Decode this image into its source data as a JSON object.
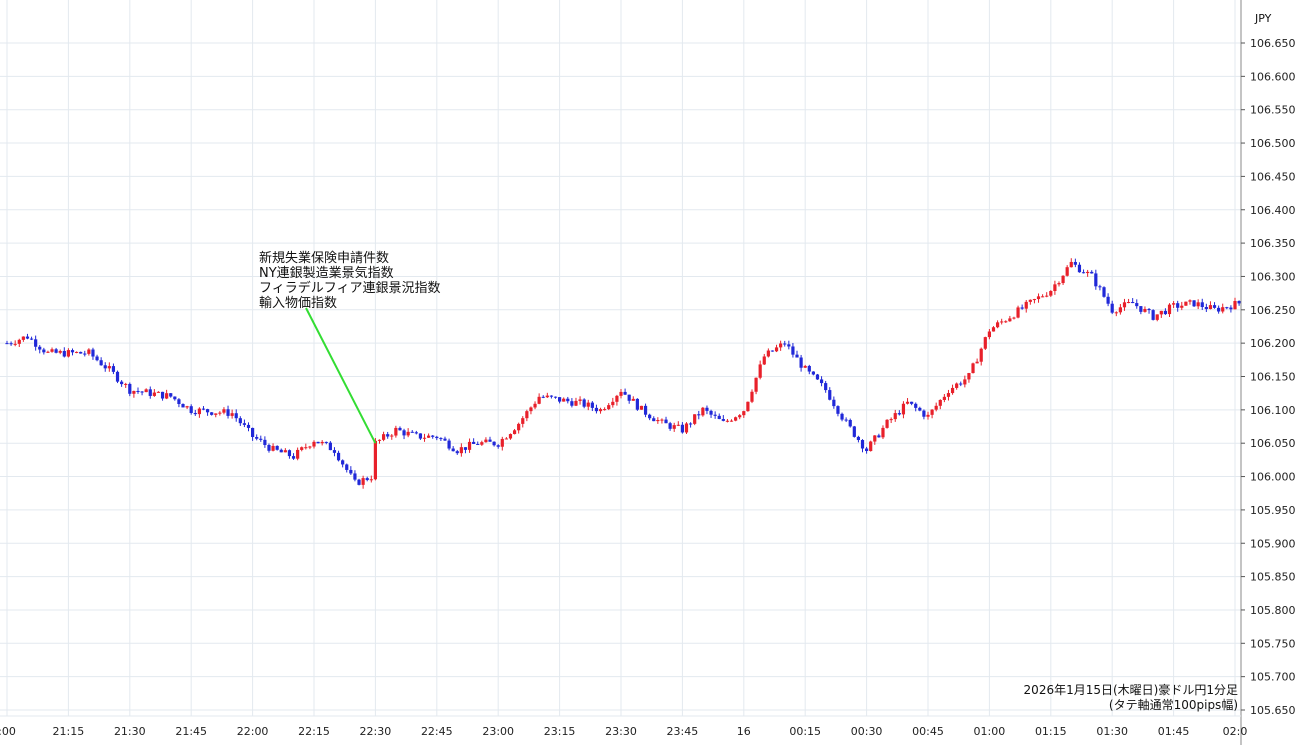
{
  "currency_label": "JPY",
  "caption": {
    "line1": "2026年1月15日(木曜日)豪ドル円1分足",
    "line2": "(タテ軸通常100pips幅)"
  },
  "annotation": {
    "lines": [
      "新規失業保険申請件数",
      "NY連銀製造業景気指数",
      "フィラデルフィア連銀景況指数",
      "輸入物価指数"
    ],
    "points_to_time": "22:30"
  },
  "colors": {
    "up": "#e8202a",
    "down": "#2028d8",
    "grid": "#e3e9ef",
    "annotation_line": "#33dd33",
    "axis": "#555555"
  },
  "chart_data": {
    "type": "candlestick",
    "interval": "1 minute",
    "x_ticks": [
      ":00",
      "21:15",
      "21:30",
      "21:45",
      "22:00",
      "22:15",
      "22:30",
      "22:45",
      "23:00",
      "23:15",
      "23:30",
      "23:45",
      "16",
      "00:15",
      "00:30",
      "00:45",
      "01:00",
      "01:15",
      "01:30",
      "01:45",
      "02:0"
    ],
    "y_ticks": [
      "106.650",
      "106.600",
      "106.550",
      "106.500",
      "106.450",
      "106.400",
      "106.350",
      "106.300",
      "106.250",
      "106.200",
      "106.150",
      "106.100",
      "106.050",
      "106.000",
      "105.950",
      "105.900",
      "105.850",
      "105.800",
      "105.750",
      "105.700",
      "105.650"
    ],
    "ylim": [
      105.65,
      106.65
    ],
    "grid": true,
    "close_path": [
      [
        "21:00",
        106.2
      ],
      [
        "21:05",
        106.21
      ],
      [
        "21:10",
        106.185
      ],
      [
        "21:20",
        106.185
      ],
      [
        "21:25",
        106.16
      ],
      [
        "21:30",
        106.13
      ],
      [
        "21:40",
        106.12
      ],
      [
        "21:45",
        106.1
      ],
      [
        "21:55",
        106.095
      ],
      [
        "22:00",
        106.06
      ],
      [
        "22:05",
        106.04
      ],
      [
        "22:10",
        106.03
      ],
      [
        "22:15",
        106.055
      ],
      [
        "22:20",
        106.04
      ],
      [
        "22:25",
        105.99
      ],
      [
        "22:29",
        106.0
      ],
      [
        "22:30",
        106.05
      ],
      [
        "22:35",
        106.07
      ],
      [
        "22:40",
        106.06
      ],
      [
        "22:45",
        106.06
      ],
      [
        "22:50",
        106.04
      ],
      [
        "22:55",
        106.05
      ],
      [
        "23:00",
        106.05
      ],
      [
        "23:05",
        106.08
      ],
      [
        "23:10",
        106.12
      ],
      [
        "23:15",
        106.115
      ],
      [
        "23:20",
        106.11
      ],
      [
        "23:25",
        106.1
      ],
      [
        "23:30",
        106.13
      ],
      [
        "23:35",
        106.1
      ],
      [
        "23:40",
        106.08
      ],
      [
        "23:45",
        106.07
      ],
      [
        "23:50",
        106.1
      ],
      [
        "23:55",
        106.08
      ],
      [
        "00:00",
        106.1
      ],
      [
        "00:05",
        106.18
      ],
      [
        "00:10",
        106.2
      ],
      [
        "00:15",
        106.16
      ],
      [
        "00:20",
        106.13
      ],
      [
        "00:25",
        106.08
      ],
      [
        "00:30",
        106.04
      ],
      [
        "00:35",
        106.08
      ],
      [
        "00:40",
        106.11
      ],
      [
        "00:45",
        106.09
      ],
      [
        "00:50",
        106.13
      ],
      [
        "00:55",
        106.15
      ],
      [
        "01:00",
        106.22
      ],
      [
        "01:05",
        106.24
      ],
      [
        "01:10",
        106.26
      ],
      [
        "01:15",
        106.28
      ],
      [
        "01:20",
        106.32
      ],
      [
        "01:25",
        106.3
      ],
      [
        "01:30",
        106.25
      ],
      [
        "01:35",
        106.26
      ],
      [
        "01:40",
        106.24
      ],
      [
        "01:45",
        106.255
      ],
      [
        "01:50",
        106.26
      ],
      [
        "01:55",
        106.25
      ],
      [
        "02:01",
        106.26
      ]
    ]
  }
}
